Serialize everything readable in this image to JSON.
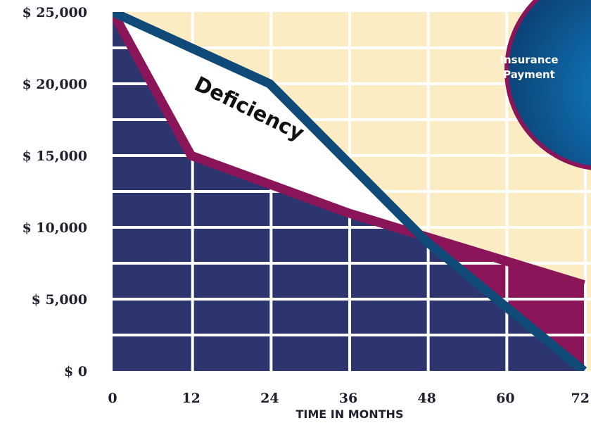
{
  "chart_data": {
    "type": "line",
    "xlabel": "TIME IN MONTHS",
    "ylabel": "",
    "x_ticks": [
      "0",
      "12",
      "24",
      "36",
      "48",
      "60",
      "72"
    ],
    "y_ticks": [
      "$ 0",
      "$ 5,000",
      "$ 10,000",
      "$ 15,000",
      "$ 20,000",
      "$ 25,000"
    ],
    "xlim": [
      0,
      72
    ],
    "ylim": [
      0,
      25000
    ],
    "grid": true,
    "series": [
      {
        "name": "",
        "color": "#0f4a78",
        "x": [
          0,
          24,
          48,
          72
        ],
        "y": [
          25000,
          20000,
          9000,
          0
        ]
      },
      {
        "name": "",
        "color": "#8a1559",
        "x": [
          0,
          12,
          36,
          72
        ],
        "y": [
          25000,
          15000,
          11000,
          6000
        ]
      }
    ],
    "annotations": [
      {
        "text": "Deficiency"
      }
    ],
    "badge": {
      "line1": "Insurance",
      "line2": "Payment"
    },
    "colors": {
      "debt_fill": "#2c356e",
      "background_grid": "#fbecc4",
      "payment_fill": "#8a1559",
      "badge": "#0a5a90"
    }
  }
}
